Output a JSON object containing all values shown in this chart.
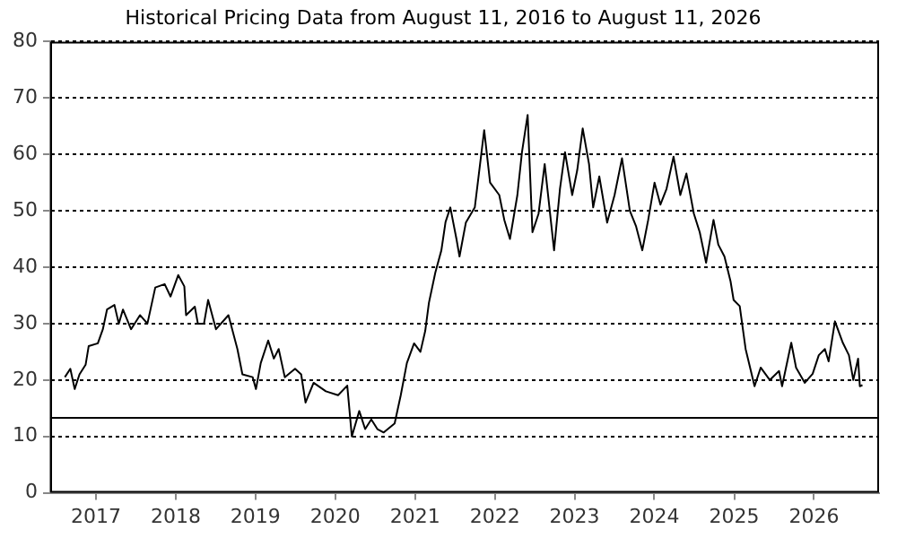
{
  "chart_data": {
    "type": "line",
    "title": "Historical Pricing Data from August 11, 2016 to August 11, 2026",
    "x": [
      "2016-08-11",
      "2016-09-05",
      "2016-09-25",
      "2016-10-17",
      "2016-11-14",
      "2016-11-28",
      "2017-01-09",
      "2017-02-01",
      "2017-02-20",
      "2017-03-26",
      "2017-04-15",
      "2017-05-04",
      "2017-06-10",
      "2017-07-21",
      "2017-08-24",
      "2017-09-29",
      "2017-11-11",
      "2017-12-08",
      "2018-01-12",
      "2018-02-09",
      "2018-02-17",
      "2018-03-29",
      "2018-04-12",
      "2018-05-10",
      "2018-05-29",
      "2018-07-04",
      "2018-08-30",
      "2018-10-10",
      "2018-11-02",
      "2018-12-19",
      "2019-01-03",
      "2019-01-25",
      "2019-02-28",
      "2019-03-26",
      "2019-04-17",
      "2019-05-15",
      "2019-07-01",
      "2019-07-29",
      "2019-08-18",
      "2019-09-24",
      "2019-11-19",
      "2020-01-14",
      "2020-02-25",
      "2020-03-17",
      "2020-04-20",
      "2020-05-17",
      "2020-06-14",
      "2020-07-12",
      "2020-08-10",
      "2020-09-29",
      "2020-10-27",
      "2020-11-24",
      "2020-12-27",
      "2021-01-25",
      "2021-02-16",
      "2021-03-05",
      "2021-04-03",
      "2021-05-01",
      "2021-05-20",
      "2021-06-11",
      "2021-07-09",
      "2021-07-23",
      "2021-08-21",
      "2021-10-01",
      "2021-11-13",
      "2021-12-10",
      "2022-01-21",
      "2022-02-13",
      "2022-03-11",
      "2022-04-14",
      "2022-05-05",
      "2022-05-31",
      "2022-06-22",
      "2022-07-20",
      "2022-08-17",
      "2022-09-29",
      "2022-10-26",
      "2022-11-18",
      "2022-12-21",
      "2023-01-13",
      "2023-02-07",
      "2023-03-08",
      "2023-03-27",
      "2023-04-24",
      "2023-05-30",
      "2023-07-03",
      "2023-08-06",
      "2023-09-11",
      "2023-10-09",
      "2023-11-07",
      "2023-12-04",
      "2024-01-02",
      "2024-01-29",
      "2024-02-26",
      "2024-03-29",
      "2024-04-29",
      "2024-05-27",
      "2024-06-30",
      "2024-07-27",
      "2024-08-25",
      "2024-09-28",
      "2024-10-20",
      "2024-11-17",
      "2024-12-15",
      "2024-12-29",
      "2025-01-26",
      "2025-02-22",
      "2025-04-04",
      "2025-05-02",
      "2025-06-13",
      "2025-07-25",
      "2025-08-08",
      "2025-09-19",
      "2025-10-11",
      "2025-11-20",
      "2025-12-26",
      "2026-01-23",
      "2026-02-20",
      "2026-03-09",
      "2026-04-07",
      "2026-05-13",
      "2026-06-10",
      "2026-06-30",
      "2026-07-22",
      "2026-07-30",
      "2026-08-11"
    ],
    "series": [
      {
        "color": "#000000",
        "values": [
          20.5,
          22,
          18.4,
          21,
          22.7,
          26,
          26.5,
          29,
          32.5,
          33.3,
          30,
          32.5,
          29,
          31.5,
          30,
          36.4,
          37,
          34.8,
          38.6,
          36.6,
          31.5,
          33,
          30,
          30,
          34.2,
          29,
          31.5,
          25.5,
          21,
          20.5,
          18.4,
          23,
          27,
          23.8,
          25.5,
          20.5,
          22,
          21,
          16,
          19.5,
          18,
          17.3,
          19,
          10,
          14.5,
          11.3,
          13,
          11.3,
          10.7,
          12.3,
          17.3,
          23,
          26.5,
          25,
          28.7,
          33.7,
          39,
          43,
          48,
          50.6,
          45,
          41.9,
          47.9,
          50.6,
          64.3,
          55,
          52.8,
          48.4,
          45,
          52.8,
          60.4,
          67,
          46.2,
          49.5,
          58.3,
          43,
          53.9,
          60.4,
          52.8,
          57.2,
          64.6,
          58.3,
          50.6,
          56.1,
          47.9,
          52.8,
          59.3,
          50,
          47.3,
          43,
          48.4,
          55,
          51.1,
          53.9,
          59.6,
          52.8,
          56.6,
          49.5,
          46.2,
          40.8,
          48.4,
          44,
          41.9,
          37.5,
          34.2,
          33.1,
          25.5,
          18.9,
          22.2,
          20,
          21.6,
          18.9,
          26.6,
          22.2,
          19.5,
          21.1,
          24.4,
          25.5,
          23.3,
          30.4,
          26.6,
          24.4,
          20,
          23.8,
          18.9,
          19.1
        ]
      }
    ],
    "xlim": [
      "2016-06-05",
      "2026-10-26"
    ],
    "xticks": [
      {
        "value": "2017",
        "label": "2017"
      },
      {
        "value": "2018",
        "label": "2018"
      },
      {
        "value": "2019",
        "label": "2019"
      },
      {
        "value": "2020",
        "label": "2020"
      },
      {
        "value": "2021",
        "label": "2021"
      },
      {
        "value": "2022",
        "label": "2022"
      },
      {
        "value": "2023",
        "label": "2023"
      },
      {
        "value": "2024",
        "label": "2024"
      },
      {
        "value": "2025",
        "label": "2025"
      },
      {
        "value": "2026",
        "label": "2026"
      }
    ],
    "ylim": [
      0,
      80
    ],
    "yticks": [
      0,
      10,
      20,
      30,
      40,
      50,
      60,
      70,
      80
    ],
    "ref_lines": [
      {
        "axis": "y",
        "value": 13.3,
        "color": "#000000",
        "line_style": "solid"
      }
    ],
    "grid": "y",
    "legend": false,
    "marker": "none",
    "line_style": "solid"
  }
}
